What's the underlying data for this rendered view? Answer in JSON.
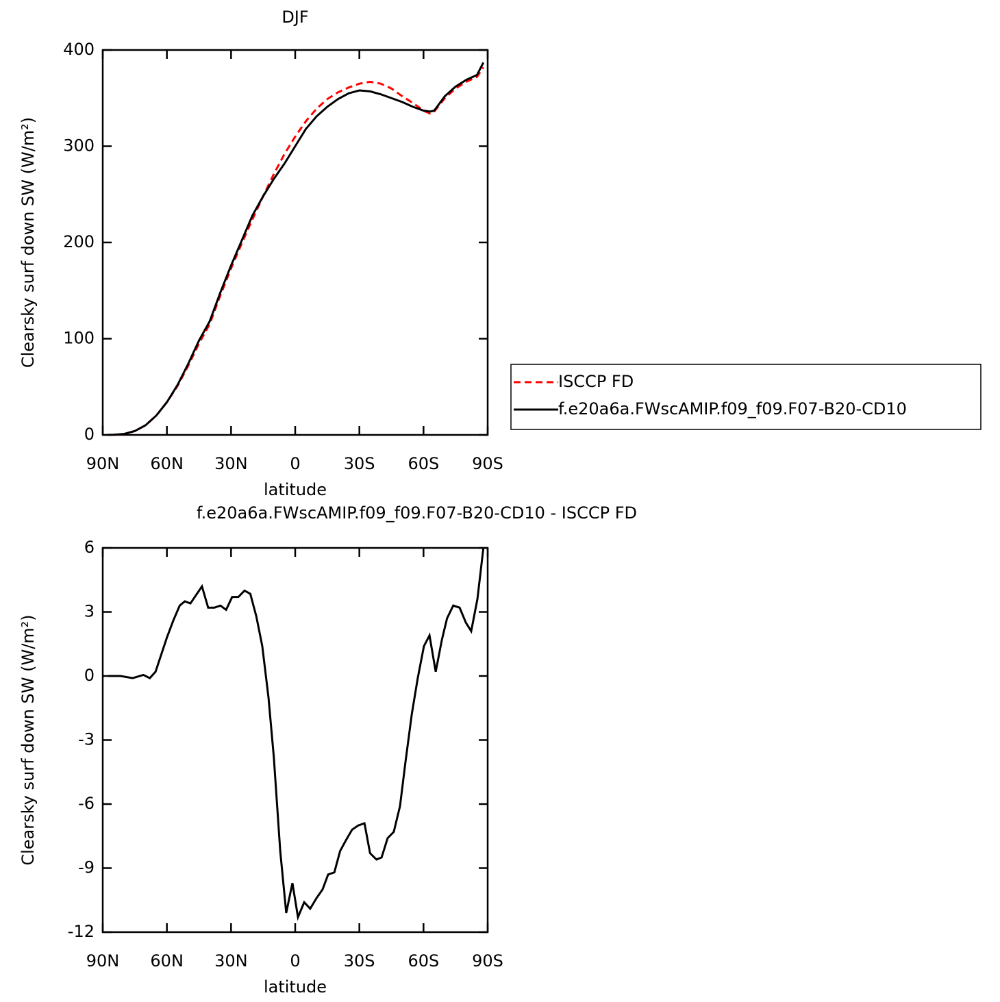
{
  "chart_data": [
    {
      "type": "line",
      "title": "DJF",
      "xlabel": "latitude",
      "ylabel": "Clearsky surf down SW (W/m²)",
      "x": [
        88,
        85,
        80,
        75,
        70,
        65,
        60,
        55,
        50,
        45,
        40,
        35,
        30,
        25,
        20,
        15,
        10,
        5,
        0,
        -5,
        -10,
        -15,
        -20,
        -25,
        -30,
        -35,
        -40,
        -45,
        -50,
        -55,
        -60,
        -63,
        -65,
        -70,
        -75,
        -80,
        -85,
        -88
      ],
      "series": [
        {
          "name": "ISCCP FD",
          "color": "#ff0000",
          "style": "dashed",
          "values": [
            0,
            0,
            1,
            4,
            10,
            20,
            34,
            51,
            72,
            95,
            115,
            145,
            173,
            199,
            224,
            248,
            271,
            292,
            310,
            326,
            339,
            349,
            356,
            361,
            365,
            367,
            365,
            360,
            352,
            345,
            337,
            334,
            336,
            350,
            360,
            367,
            372,
            382
          ]
        },
        {
          "name": "f.e20a6a.FWscAMIP.f09_f09.F07-B20-CD10",
          "color": "#000000",
          "style": "solid",
          "values": [
            0,
            0.2,
            1,
            4,
            10,
            20,
            34,
            52,
            74,
            98,
            118,
            148,
            176,
            202,
            228,
            248,
            266,
            282,
            300,
            318,
            331,
            341,
            349,
            355,
            358,
            357,
            354,
            350,
            346,
            341,
            337,
            336,
            337,
            352,
            362,
            369,
            374,
            387
          ]
        }
      ],
      "xlim": [
        90,
        -90
      ],
      "xticks": [
        {
          "value": 90,
          "label": "90N"
        },
        {
          "value": 60,
          "label": "60N"
        },
        {
          "value": 30,
          "label": "30N"
        },
        0,
        {
          "value": -30,
          "label": "30S"
        },
        {
          "value": -60,
          "label": "60S"
        },
        {
          "value": -90,
          "label": "90S"
        }
      ],
      "ylim": [
        0,
        400
      ],
      "yticks": [
        0,
        100,
        200,
        300,
        400
      ],
      "legend": "right"
    },
    {
      "type": "line",
      "title": "f.e20a6a.FWscAMIP.f09_f09.F07-B20-CD10 - ISCCP FD",
      "xlabel": "latitude",
      "ylabel": "Clearsky surf down SW (W/m²)",
      "x": [
        87.5,
        81.7,
        76,
        71,
        68,
        65.3,
        60,
        57,
        54,
        51.6,
        49,
        43.6,
        40.7,
        37.8,
        35,
        32.3,
        29.5,
        26.6,
        23.7,
        21,
        18.2,
        15.4,
        12.5,
        10,
        7,
        4.2,
        1.3,
        -1.3,
        -4.2,
        -7,
        -10,
        -12.8,
        -15.4,
        -18.3,
        -21,
        -23.7,
        -26.6,
        -29.5,
        -32.4,
        -35,
        -38,
        -40.4,
        -43.2,
        -46.1,
        -49,
        -51.6,
        -54.5,
        -57.3,
        -60.2,
        -62.8,
        -65.7,
        -68.6,
        -71,
        -73.9,
        -76.9,
        -79.8,
        -82.3,
        -85.2,
        -88
      ],
      "values": [
        0,
        0,
        -0.1,
        0.05,
        -0.1,
        0.2,
        1.8,
        2.6,
        3.3,
        3.5,
        3.4,
        4.2,
        3.2,
        3.2,
        3.3,
        3.1,
        3.7,
        3.7,
        4.0,
        3.85,
        2.8,
        1.4,
        -1.0,
        -3.8,
        -8.2,
        -11.1,
        -9.7,
        -11.3,
        -10.6,
        -10.9,
        -10.4,
        -10.0,
        -9.3,
        -9.2,
        -8.2,
        -7.7,
        -7.2,
        -7.0,
        -6.9,
        -8.3,
        -8.6,
        -8.5,
        -7.6,
        -7.3,
        -6.1,
        -4.0,
        -1.8,
        -0.1,
        1.4,
        1.9,
        0.2,
        1.7,
        2.7,
        3.3,
        3.2,
        2.5,
        2.1,
        3.6,
        6
      ],
      "color": "#000000",
      "xlim": [
        90,
        -90
      ],
      "xticks": [
        {
          "value": 90,
          "label": "90N"
        },
        {
          "value": 60,
          "label": "60N"
        },
        {
          "value": 30,
          "label": "30N"
        },
        0,
        {
          "value": -30,
          "label": "30S"
        },
        {
          "value": -60,
          "label": "60S"
        },
        {
          "value": -90,
          "label": "90S"
        }
      ],
      "ylim": [
        -12,
        6
      ],
      "yticks": [
        -12,
        -9,
        -6,
        -3,
        0,
        3,
        6
      ]
    }
  ]
}
